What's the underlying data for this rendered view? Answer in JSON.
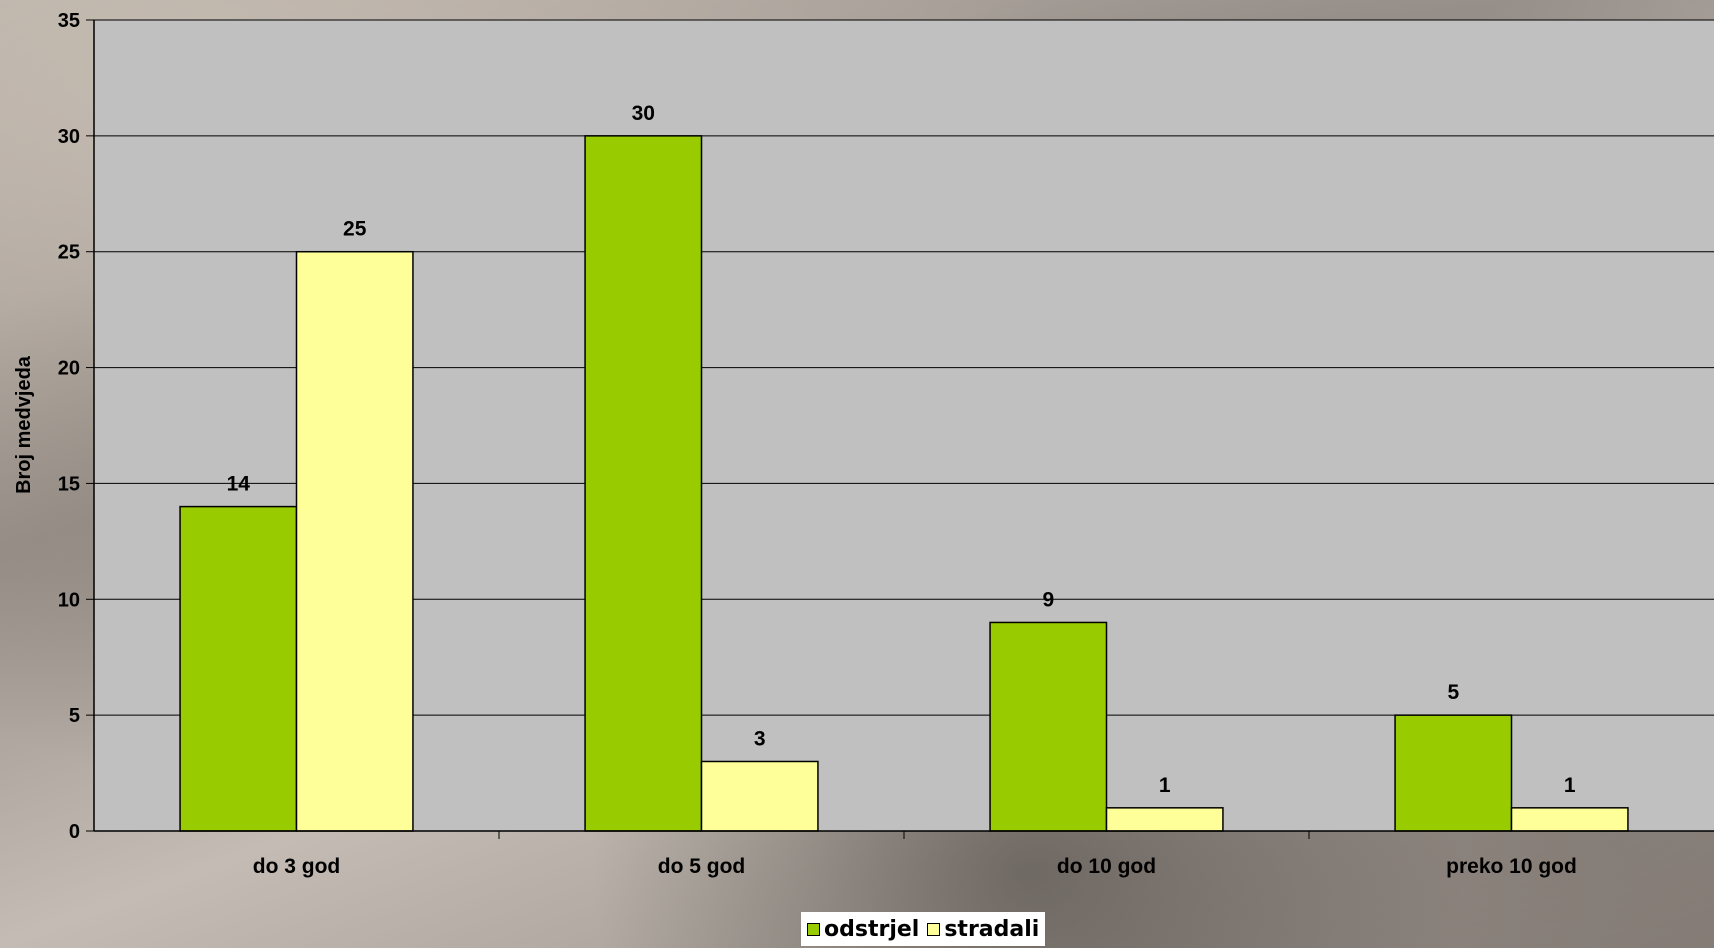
{
  "chart_data": {
    "type": "bar",
    "title": "",
    "categories": [
      "do 3 god",
      "do 5 god",
      "do 10 god",
      "preko 10 god"
    ],
    "series": [
      {
        "name": "odstrjel",
        "values": [
          14,
          30,
          9,
          5
        ],
        "color": "#99cc00"
      },
      {
        "name": "stradali",
        "values": [
          25,
          3,
          1,
          1
        ],
        "color": "#ffff99"
      }
    ],
    "xlabel": "",
    "ylabel": "Broj medvjeda",
    "ylim": [
      0,
      35
    ],
    "yticks": [
      0,
      5,
      10,
      15,
      20,
      25,
      30,
      35
    ],
    "grid": true,
    "data_labels": true,
    "legend_position": "bottom",
    "plot_background": "#c0c0c0"
  }
}
